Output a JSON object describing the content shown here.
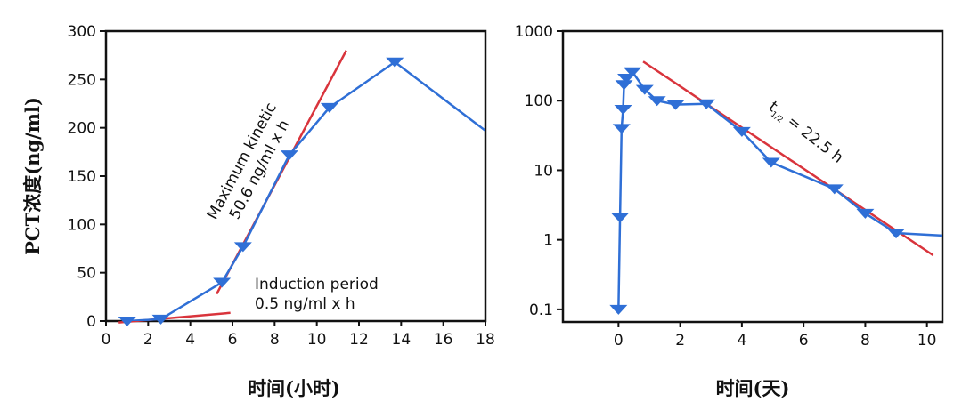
{
  "chart_data": [
    {
      "type": "line",
      "ylabel": "PCT浓度(ng/ml)",
      "xlabel": "时间(小时)",
      "xlim": [
        0,
        18
      ],
      "ylim": [
        0,
        300
      ],
      "xticks": [
        "0",
        "2",
        "4",
        "6",
        "8",
        "10",
        "12",
        "14",
        "16",
        "18"
      ],
      "yticks": [
        "0",
        "50",
        "100",
        "150",
        "200",
        "250",
        "300"
      ],
      "grid": false,
      "series": [
        {
          "x": [
            1,
            2.6,
            5.5,
            6.5,
            8.7,
            10.6,
            13.7,
            18
          ],
          "y": [
            0,
            2,
            40,
            77,
            172,
            221,
            268,
            197
          ],
          "color": "#2f6fd6",
          "marker": "down-triangle"
        }
      ],
      "fit_lines": [
        {
          "x": [
            0.6,
            5.9
          ],
          "y": [
            -1.5,
            8.5
          ],
          "color": "#d9343c"
        },
        {
          "x": [
            5.25,
            11.4
          ],
          "y": [
            28,
            280
          ],
          "color": "#d9343c"
        }
      ],
      "annotations": [
        {
          "lines": [
            "Induction period",
            "0.5 ng/ml x h"
          ]
        },
        {
          "lines": [
            "Maximum kinetic",
            "50.6 ng/ml x h"
          ]
        }
      ]
    },
    {
      "type": "line",
      "xlabel": "时间(天)",
      "yscale": "log",
      "xlim": [
        -1.8,
        10.5
      ],
      "ylim": [
        0.066,
        1000
      ],
      "xticks": [
        "0",
        "2",
        "4",
        "6",
        "8",
        "10"
      ],
      "yticks": [
        "0.1",
        "1",
        "10",
        "100",
        "1000"
      ],
      "grid": false,
      "series": [
        {
          "x": [
            0,
            0.05,
            0.1,
            0.15,
            0.18,
            0.25,
            0.45,
            0.85,
            1.25,
            1.85,
            2.85,
            4.0,
            4.95,
            7.0,
            8.0,
            9.0,
            10.5
          ],
          "y": [
            0.1,
            2.1,
            40,
            75,
            170,
            210,
            260,
            145,
            100,
            88,
            90,
            36,
            13,
            5.4,
            2.4,
            1.25,
            1.15
          ],
          "color": "#2f6fd6",
          "marker": "down-triangle"
        }
      ],
      "fit_lines": [
        {
          "x": [
            0.8,
            10.2
          ],
          "y": [
            365,
            0.6
          ],
          "color": "#d9343c"
        }
      ],
      "annotations": [
        {
          "lines": [
            "t",
            "1/2",
            " = 22.5 h"
          ]
        }
      ]
    }
  ]
}
